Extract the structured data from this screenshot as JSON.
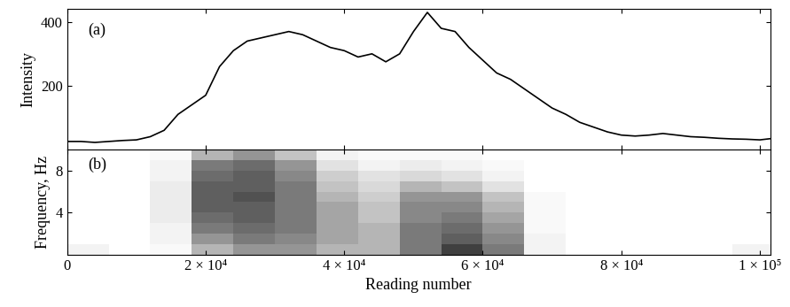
{
  "chart_data": [
    {
      "type": "line",
      "annotation": "(a)",
      "y_label": "Intensity",
      "color": "#000000",
      "x": [
        0,
        2000,
        4000,
        6000,
        8000,
        10000,
        12000,
        14000,
        16000,
        18000,
        20000,
        22000,
        24000,
        26000,
        28000,
        30000,
        32000,
        34000,
        36000,
        38000,
        40000,
        42000,
        44000,
        46000,
        48000,
        50000,
        52000,
        54000,
        56000,
        58000,
        60000,
        62000,
        64000,
        66000,
        68000,
        70000,
        72000,
        74000,
        76000,
        78000,
        80000,
        82000,
        84000,
        86000,
        88000,
        90000,
        92000,
        94000,
        96000,
        98000,
        100000,
        102000
      ],
      "values": [
        25,
        25,
        22,
        25,
        28,
        30,
        40,
        60,
        110,
        140,
        170,
        260,
        310,
        340,
        350,
        360,
        370,
        360,
        340,
        320,
        310,
        290,
        300,
        275,
        300,
        370,
        430,
        380,
        370,
        320,
        280,
        240,
        220,
        190,
        160,
        130,
        110,
        85,
        70,
        55,
        45,
        42,
        45,
        50,
        45,
        40,
        38,
        35,
        33,
        32,
        30,
        35
      ],
      "xlim": [
        0,
        101500
      ],
      "xticks": [
        0,
        20000,
        40000,
        60000,
        80000,
        100000
      ],
      "ylim": [
        0,
        440
      ],
      "yticks": [
        200,
        400
      ],
      "tick_labels": "y"
    },
    {
      "type": "heatmap",
      "annotation": "(b)",
      "y_label": "Frequency, Hz",
      "x_label": "Reading number",
      "x_edges": [
        0,
        6000,
        12000,
        18000,
        24000,
        30000,
        36000,
        42000,
        48000,
        54000,
        60000,
        66000,
        72000,
        78000,
        84000,
        90000,
        96000,
        102000
      ],
      "y_edges": [
        0,
        1,
        2,
        3,
        4,
        5,
        6,
        7,
        8,
        9,
        10
      ],
      "cells": [
        [
          0.1,
          0,
          0.05,
          0.4,
          0.5,
          0.5,
          0.4,
          0.4,
          0.6,
          0.8,
          0.6,
          0.1,
          0,
          0,
          0,
          0,
          0.1
        ],
        [
          0,
          0,
          0.1,
          0.5,
          0.6,
          0.55,
          0.45,
          0.4,
          0.6,
          0.7,
          0.55,
          0.1,
          0,
          0,
          0,
          0,
          0
        ],
        [
          0,
          0,
          0.1,
          0.6,
          0.65,
          0.6,
          0.45,
          0.4,
          0.6,
          0.65,
          0.5,
          0.05,
          0,
          0,
          0,
          0,
          0
        ],
        [
          0,
          0,
          0.15,
          0.65,
          0.7,
          0.6,
          0.45,
          0.35,
          0.55,
          0.6,
          0.45,
          0.05,
          0,
          0,
          0,
          0,
          0
        ],
        [
          0,
          0,
          0.15,
          0.7,
          0.7,
          0.6,
          0.45,
          0.35,
          0.55,
          0.55,
          0.4,
          0.05,
          0,
          0,
          0,
          0,
          0
        ],
        [
          0,
          0,
          0.15,
          0.7,
          0.75,
          0.6,
          0.4,
          0.3,
          0.5,
          0.5,
          0.35,
          0.05,
          0,
          0,
          0,
          0,
          0
        ],
        [
          0,
          0,
          0.15,
          0.7,
          0.7,
          0.6,
          0.35,
          0.25,
          0.4,
          0.35,
          0.2,
          0,
          0,
          0,
          0,
          0,
          0
        ],
        [
          0,
          0,
          0.1,
          0.65,
          0.7,
          0.55,
          0.3,
          0.2,
          0.25,
          0.2,
          0.1,
          0,
          0,
          0,
          0,
          0,
          0
        ],
        [
          0,
          0,
          0.1,
          0.6,
          0.65,
          0.5,
          0.2,
          0.1,
          0.15,
          0.1,
          0.05,
          0,
          0,
          0,
          0,
          0,
          0
        ],
        [
          0,
          0,
          0.05,
          0.4,
          0.5,
          0.35,
          0.1,
          0.05,
          0.05,
          0.05,
          0,
          0,
          0,
          0,
          0,
          0,
          0
        ]
      ],
      "color_range": [
        0,
        1
      ],
      "xlim": [
        0,
        101500
      ],
      "xticks": [
        0,
        {
          "value": 20000,
          "label": "2 × 10⁴"
        },
        {
          "value": 40000,
          "label": "4 × 10⁴"
        },
        {
          "value": 60000,
          "label": "6 × 10⁴"
        },
        {
          "value": 80000,
          "label": "8 × 10⁴"
        },
        {
          "value": 100000,
          "label": "1 × 10⁵"
        }
      ],
      "ylim": [
        0,
        10
      ],
      "yticks": [
        4,
        8
      ]
    }
  ]
}
